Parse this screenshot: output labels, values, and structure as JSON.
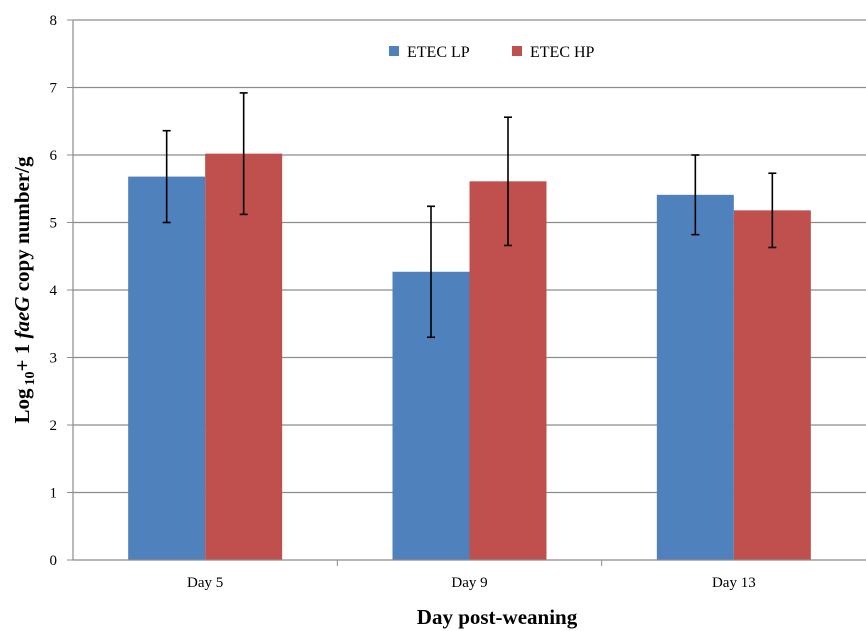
{
  "chart_data": {
    "type": "bar",
    "categories": [
      "Day 5",
      "Day 9",
      "Day 13"
    ],
    "series": [
      {
        "name": "ETEC LP",
        "color": "#4F81BD",
        "values": [
          5.68,
          4.27,
          5.41
        ],
        "errors": [
          0.68,
          0.97,
          0.59
        ]
      },
      {
        "name": "ETEC HP",
        "color": "#C0504D",
        "values": [
          6.02,
          5.61,
          5.18
        ],
        "errors": [
          0.9,
          0.95,
          0.55
        ]
      }
    ],
    "title": "",
    "xlabel": "Day post-weaning",
    "ylabel_prefix": "Log",
    "ylabel_subscript": "10",
    "ylabel_plus": "+ 1 ",
    "ylabel_gene": "faeG",
    "ylabel_suffix": " copy number/g",
    "ylim": [
      0,
      8
    ],
    "yticks": [
      "0",
      "1",
      "2",
      "3",
      "4",
      "5",
      "6",
      "7",
      "8"
    ],
    "grid": true,
    "legend_position": "top-center"
  }
}
